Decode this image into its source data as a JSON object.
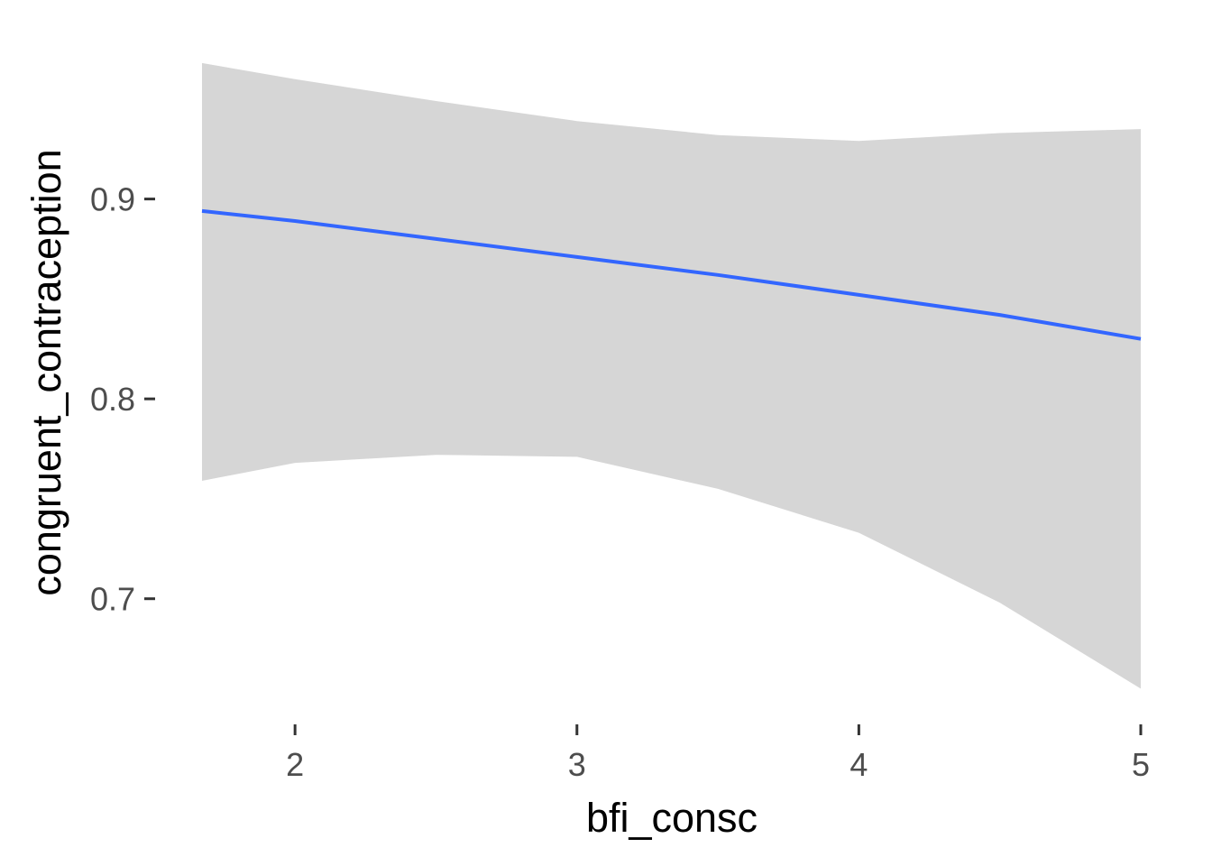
{
  "chart_data": {
    "type": "line",
    "title": "",
    "xlabel": "bfi_consc",
    "ylabel": "congruent_contraception",
    "xlim": [
      1.67,
      5.0
    ],
    "ylim": [
      0.643,
      0.977
    ],
    "x_ticks": [
      2,
      3,
      4,
      5
    ],
    "y_ticks": [
      0.7,
      0.8,
      0.9
    ],
    "x_tick_labels": [
      "2",
      "3",
      "4",
      "5"
    ],
    "y_tick_labels": [
      "0.7",
      "0.8",
      "0.9"
    ],
    "grid": false,
    "legend": "none",
    "series": [
      {
        "x": [
          1.67,
          2.0,
          2.5,
          3.0,
          3.5,
          4.0,
          4.5,
          5.0
        ],
        "y": [
          0.894,
          0.889,
          0.88,
          0.871,
          0.862,
          0.852,
          0.842,
          0.83
        ],
        "ci_lower": [
          0.759,
          0.768,
          0.772,
          0.771,
          0.755,
          0.733,
          0.698,
          0.655
        ],
        "ci_upper": [
          0.968,
          0.96,
          0.949,
          0.939,
          0.932,
          0.929,
          0.933,
          0.935
        ]
      }
    ],
    "colors": {
      "line": "#3366FF",
      "ribbon": "#D6D6D6",
      "tick": "#333333",
      "tick_label": "#4D4D4D",
      "axis_title": "#000000"
    }
  }
}
